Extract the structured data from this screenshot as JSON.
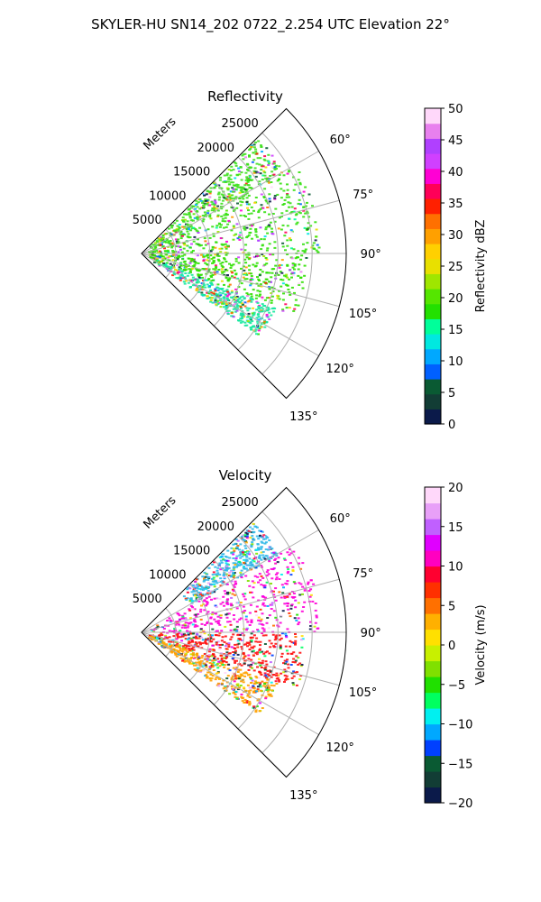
{
  "figure": {
    "suptitle": "SKYLER-HU  SN14_202  0722_2.254 UTC Elevation 22°"
  },
  "chart_data": [
    {
      "type": "polar-sector",
      "title": "Reflectivity",
      "radial_label": "Meters",
      "r_ticks": [
        5000,
        10000,
        15000,
        20000,
        25000
      ],
      "r_max": 30000,
      "theta_range_deg": [
        45,
        135
      ],
      "theta_ticks": [
        "60°",
        "75°",
        "90°",
        "105°",
        "120°",
        "135°"
      ],
      "colorbar": {
        "label": "Reflectivity dBZ",
        "min": 0,
        "max": 50,
        "ticks": [
          "0",
          "5",
          "10",
          "15",
          "20",
          "25",
          "30",
          "35",
          "40",
          "45",
          "50"
        ],
        "colormap": [
          "#0b1a4a",
          "#123d35",
          "#0a5a33",
          "#0060ff",
          "#00a8ff",
          "#00e8e0",
          "#00ff9a",
          "#23e000",
          "#55e600",
          "#9fe600",
          "#e8e000",
          "#ffd000",
          "#ffa000",
          "#ff7000",
          "#ff2000",
          "#ff0058",
          "#ff00d4",
          "#d040ff",
          "#b040ff",
          "#e880ee",
          "#ffd8fa"
        ]
      },
      "field_sectors": [
        {
          "theta": [
            45,
            60
          ],
          "r": [
            1500,
            24000
          ],
          "dominant": "#40e020"
        },
        {
          "theta": [
            60,
            90
          ],
          "r": [
            1000,
            26000
          ],
          "dominant": "#34e010"
        },
        {
          "theta": [
            90,
            112
          ],
          "r": [
            1000,
            24000
          ],
          "dominant": "#2fe000"
        },
        {
          "theta": [
            112,
            125
          ],
          "r": [
            2000,
            21000
          ],
          "dominant": "#18e8a0"
        }
      ]
    },
    {
      "type": "polar-sector",
      "title": "Velocity",
      "radial_label": "Meters",
      "r_ticks": [
        5000,
        10000,
        15000,
        20000,
        25000
      ],
      "r_max": 30000,
      "theta_range_deg": [
        45,
        135
      ],
      "theta_ticks": [
        "60°",
        "75°",
        "90°",
        "105°",
        "120°",
        "135°"
      ],
      "colorbar": {
        "label": "Velocity (m/s)",
        "min": -20,
        "max": 20,
        "ticks": [
          "−20",
          "−15",
          "−10",
          "−5",
          "0",
          "5",
          "10",
          "15",
          "20"
        ],
        "colormap": [
          "#0b1a4a",
          "#123d35",
          "#0a5a33",
          "#0040ff",
          "#00a8ff",
          "#00f0f0",
          "#00ff60",
          "#20e000",
          "#80e000",
          "#c8f000",
          "#ffe000",
          "#ffb000",
          "#ff7000",
          "#ff3000",
          "#ff0030",
          "#ff00c0",
          "#e000ff",
          "#c060ff",
          "#e8a0f8",
          "#ffd8fa"
        ]
      },
      "field_sectors": [
        {
          "theta": [
            45,
            60
          ],
          "r": [
            8000,
            23000
          ],
          "dominant": "#30b8e8"
        },
        {
          "theta": [
            60,
            90
          ],
          "r": [
            1000,
            26000
          ],
          "dominant": "#ff00d8"
        },
        {
          "theta": [
            90,
            110
          ],
          "r": [
            1000,
            24000
          ],
          "dominant": "#ff1010"
        },
        {
          "theta": [
            110,
            125
          ],
          "r": [
            1000,
            21000
          ],
          "dominant": "#ffa000"
        }
      ]
    }
  ]
}
